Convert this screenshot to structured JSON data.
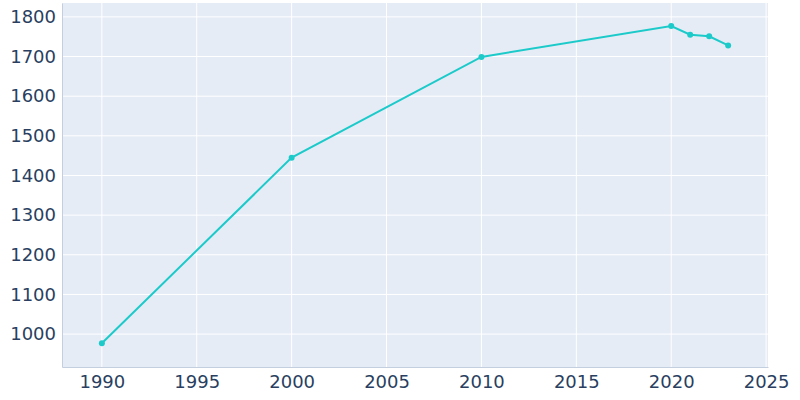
{
  "chart_data": {
    "type": "line",
    "x": [
      1990,
      2000,
      2010,
      2020,
      2021,
      2022,
      2023
    ],
    "values": [
      977,
      1445,
      1699,
      1777,
      1755,
      1751,
      1728
    ],
    "color": "#1ccaca",
    "marker": "circle",
    "xlim": [
      1987.9,
      2025.1
    ],
    "xticks": [
      1990,
      1995,
      2000,
      2005,
      2010,
      2015,
      2020,
      2025
    ],
    "ylim": [
      917,
      1835
    ],
    "yticks": [
      1000,
      1100,
      1200,
      1300,
      1400,
      1500,
      1600,
      1700,
      1800
    ],
    "grid": true
  }
}
